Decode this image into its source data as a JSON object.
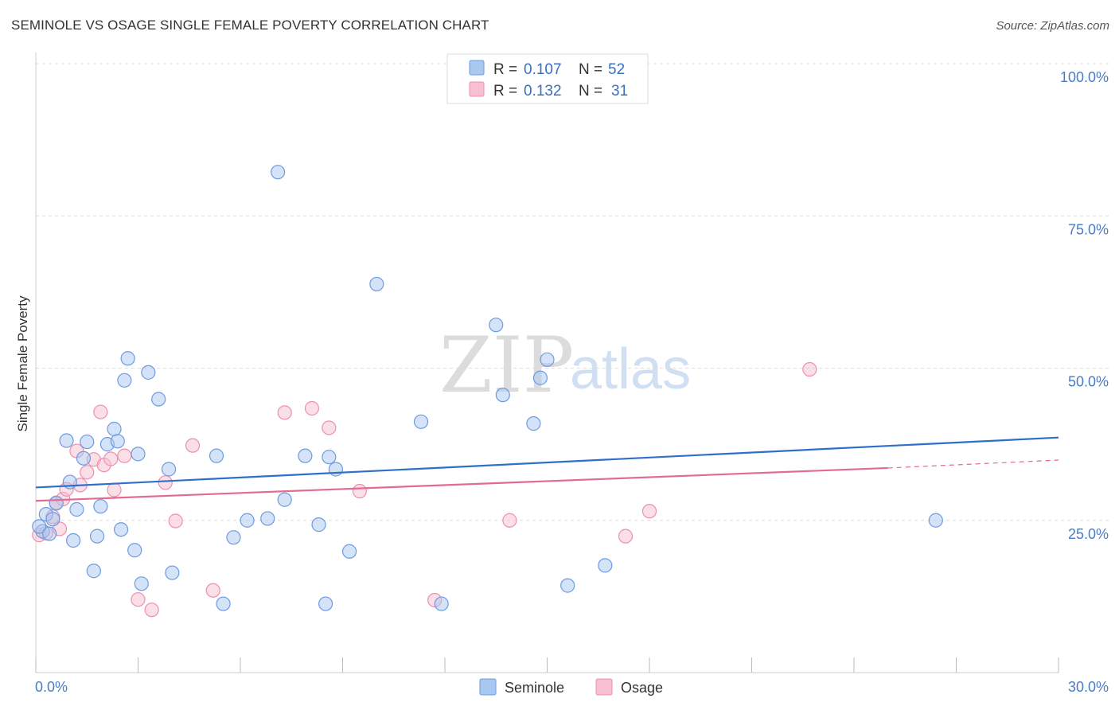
{
  "title": "SEMINOLE VS OSAGE SINGLE FEMALE POVERTY CORRELATION CHART",
  "source": "Source: ZipAtlas.com",
  "watermark": {
    "zip": "ZIP",
    "atlas": "atlas"
  },
  "legend": {
    "rows": [
      {
        "r_label": "R =",
        "r_value": "0.107",
        "n_label": "N =",
        "n_value": "52",
        "color": "#a9c8f0",
        "border": "#6d9be0"
      },
      {
        "r_label": "R =",
        "r_value": "0.132",
        "n_label": "N =",
        "n_value": "31",
        "color": "#f7bfd0",
        "border": "#ec8fae"
      }
    ]
  },
  "bottom_legend": [
    "Seminole",
    "Osage"
  ],
  "colors": {
    "seminole_fill": "#a9c8f0",
    "seminole_stroke": "#6d9be0",
    "seminole_line": "#2f6fcc",
    "osage_fill": "#f7bfd0",
    "osage_stroke": "#ec8fae",
    "osage_line": "#e26a93",
    "grid": "#dddddd",
    "tick_label": "#4a7cc4"
  },
  "chart_data": {
    "type": "scatter",
    "title": "SEMINOLE VS OSAGE SINGLE FEMALE POVERTY CORRELATION CHART",
    "xlabel": "",
    "ylabel": "Single Female Poverty",
    "xlim": [
      0,
      30
    ],
    "ylim": [
      0,
      100
    ],
    "x_tick_labels": [
      "0.0%",
      "30.0%"
    ],
    "y_ticks": [
      25,
      50,
      75,
      100
    ],
    "y_tick_labels": [
      "25.0%",
      "50.0%",
      "75.0%",
      "100.0%"
    ],
    "grid": true,
    "legend_position": "top-center",
    "series": [
      {
        "name": "Seminole",
        "trend": {
          "x": [
            0,
            30
          ],
          "y": [
            30.4,
            38.6
          ]
        },
        "points": [
          [
            0.2,
            23.2
          ],
          [
            0.3,
            26.0
          ],
          [
            0.5,
            25.2
          ],
          [
            0.6,
            27.8
          ],
          [
            0.9,
            38.1
          ],
          [
            1.0,
            31.3
          ],
          [
            1.1,
            21.7
          ],
          [
            1.2,
            26.8
          ],
          [
            1.4,
            35.2
          ],
          [
            1.5,
            37.9
          ],
          [
            1.7,
            16.7
          ],
          [
            1.8,
            22.4
          ],
          [
            1.9,
            27.3
          ],
          [
            2.1,
            37.5
          ],
          [
            2.3,
            40.0
          ],
          [
            2.4,
            38.0
          ],
          [
            2.5,
            23.5
          ],
          [
            2.6,
            48.0
          ],
          [
            2.7,
            51.6
          ],
          [
            2.9,
            20.1
          ],
          [
            3.0,
            35.9
          ],
          [
            3.1,
            14.6
          ],
          [
            3.3,
            49.3
          ],
          [
            3.6,
            44.9
          ],
          [
            3.9,
            33.4
          ],
          [
            4.0,
            16.4
          ],
          [
            5.3,
            35.6
          ],
          [
            5.5,
            11.3
          ],
          [
            5.8,
            22.2
          ],
          [
            6.2,
            25.0
          ],
          [
            6.8,
            25.3
          ],
          [
            7.1,
            82.2
          ],
          [
            7.3,
            28.4
          ],
          [
            7.9,
            35.6
          ],
          [
            8.3,
            24.3
          ],
          [
            8.5,
            11.3
          ],
          [
            8.6,
            35.4
          ],
          [
            8.8,
            33.4
          ],
          [
            9.2,
            19.9
          ],
          [
            10.0,
            63.8
          ],
          [
            11.3,
            41.2
          ],
          [
            11.9,
            11.3
          ],
          [
            13.5,
            57.1
          ],
          [
            13.7,
            45.6
          ],
          [
            14.6,
            40.9
          ],
          [
            14.8,
            48.4
          ],
          [
            15.0,
            51.4
          ],
          [
            15.6,
            14.3
          ],
          [
            16.7,
            17.6
          ],
          [
            26.4,
            25.0
          ],
          [
            0.1,
            24.0
          ],
          [
            0.4,
            22.8
          ]
        ]
      },
      {
        "name": "Osage",
        "trend": {
          "x": [
            0,
            25
          ],
          "y": [
            28.2,
            33.6
          ]
        },
        "trend_dashed": {
          "x": [
            25,
            30
          ],
          "y": [
            33.6,
            34.9
          ]
        },
        "points": [
          [
            0.1,
            22.6
          ],
          [
            0.3,
            22.9
          ],
          [
            0.5,
            25.6
          ],
          [
            0.6,
            27.9
          ],
          [
            0.7,
            23.6
          ],
          [
            0.8,
            28.5
          ],
          [
            0.9,
            30.1
          ],
          [
            1.2,
            36.4
          ],
          [
            1.3,
            30.8
          ],
          [
            1.5,
            32.9
          ],
          [
            1.7,
            35.0
          ],
          [
            1.9,
            42.8
          ],
          [
            2.0,
            34.1
          ],
          [
            2.2,
            35.1
          ],
          [
            2.3,
            30.0
          ],
          [
            2.6,
            35.6
          ],
          [
            3.0,
            12.0
          ],
          [
            3.4,
            10.3
          ],
          [
            3.8,
            31.2
          ],
          [
            4.1,
            24.9
          ],
          [
            4.6,
            37.3
          ],
          [
            5.2,
            13.5
          ],
          [
            7.3,
            42.7
          ],
          [
            8.1,
            43.4
          ],
          [
            8.6,
            40.2
          ],
          [
            9.5,
            29.8
          ],
          [
            11.7,
            11.9
          ],
          [
            13.9,
            25.0
          ],
          [
            17.3,
            22.4
          ],
          [
            18.0,
            26.5
          ],
          [
            22.7,
            49.8
          ]
        ]
      }
    ]
  }
}
